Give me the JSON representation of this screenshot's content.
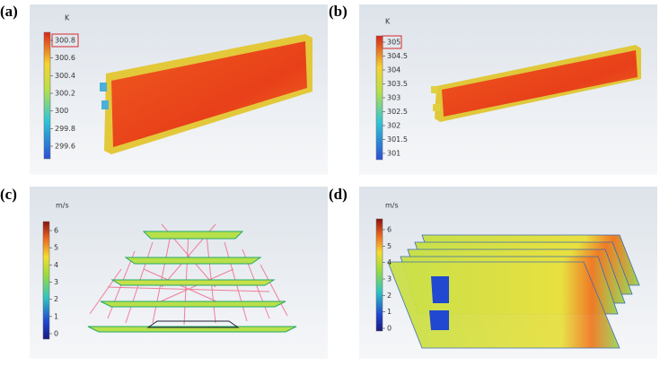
{
  "panels": [
    {
      "label": "(a)",
      "unit": "K",
      "ticks": [
        "300.8",
        "300.6",
        "300.4",
        "300.2",
        "300",
        "299.8",
        "299.6"
      ]
    },
    {
      "label": "(b)",
      "unit": "K",
      "ticks": [
        "305",
        "304.5",
        "304",
        "303.5",
        "303",
        "302.5",
        "302",
        "301.5",
        "301"
      ]
    },
    {
      "label": "(c)",
      "unit": "m/s",
      "ticks": [
        "6",
        "5",
        "4",
        "3",
        "2",
        "1",
        "0"
      ]
    },
    {
      "label": "(d)",
      "unit": "m/s",
      "ticks": [
        "6",
        "5",
        "4",
        "3",
        "2",
        "1",
        "0"
      ]
    }
  ]
}
